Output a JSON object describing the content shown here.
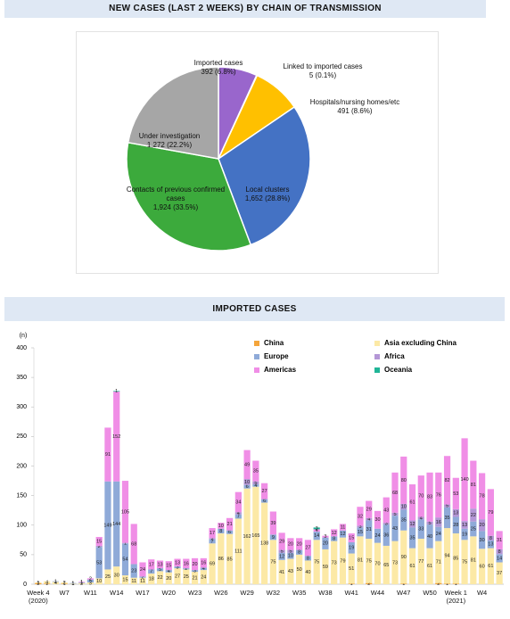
{
  "chart_data": [
    {
      "type": "pie",
      "title": "NEW CASES (LAST 2 WEEKS) BY CHAIN OF TRANSMISSION",
      "categories": [
        "Imported cases",
        "Linked to imported cases",
        "Hospitals/nursing homes/etc",
        "Local clusters",
        "Contacts of previous confirmed cases",
        "Under investigation"
      ],
      "values": [
        392,
        5,
        491,
        1652,
        1924,
        1272
      ],
      "value_labels": [
        "392 (6.8%)",
        "5 (0.1%)",
        "491 (8.6%)",
        "1,652 (28.8%)",
        "1,924 (33.5%)",
        "1,272 (22.2%)"
      ],
      "colors": [
        "#9966cc",
        "#7f7f7f",
        "#ffc000",
        "#4472c4",
        "#3caa3c",
        "#a6a6a6"
      ]
    },
    {
      "type": "bar",
      "stacked": true,
      "title": "IMPORTED CASES",
      "y_label": "(n)",
      "categories": [
        "Week 4\n(2020)",
        null,
        null,
        "W7",
        null,
        null,
        "W11",
        null,
        null,
        "W14",
        null,
        null,
        "W17",
        null,
        null,
        "W20",
        null,
        null,
        "W23",
        null,
        null,
        "W26",
        null,
        null,
        "W29",
        null,
        null,
        "W32",
        null,
        null,
        "W35",
        null,
        null,
        "W38",
        null,
        null,
        "W41",
        null,
        null,
        "W44",
        null,
        null,
        "W47",
        null,
        null,
        "W50",
        null,
        null,
        "Week 1\n(2021)",
        null,
        null,
        "W4",
        null,
        null
      ],
      "series": [
        {
          "name": "China",
          "color": "#f4a53b",
          "values": [
            2,
            1,
            0,
            1,
            0,
            0,
            0,
            0,
            0,
            0,
            0,
            0,
            0,
            0,
            0,
            0,
            0,
            0,
            0,
            0,
            0,
            0,
            0,
            0,
            0,
            0,
            0,
            0,
            0,
            0,
            0,
            0,
            0,
            0,
            0,
            0,
            1,
            0,
            2,
            0,
            0,
            0,
            1,
            0,
            0,
            0,
            2,
            1,
            1,
            0,
            0,
            0,
            0,
            0
          ]
        },
        {
          "name": "Asia excluding China",
          "color": "#fce9a6",
          "values": [
            1,
            4,
            4,
            2,
            1,
            2,
            3,
            10,
            25,
            30,
            15,
            11,
            11,
            18,
            22,
            20,
            27,
            25,
            21,
            24,
            69,
            86,
            85,
            111,
            162,
            165,
            138,
            75,
            41,
            43,
            50,
            40,
            75,
            59,
            73,
            79,
            51,
            81,
            75,
            70,
            65,
            73,
            90,
            61,
            77,
            61,
            71,
            94,
            85,
            75,
            81,
            60,
            61,
            37
          ]
        },
        {
          "name": "Europe",
          "color": "#8faad8",
          "values": [
            0,
            0,
            1,
            0,
            1,
            1,
            5,
            53,
            149,
            144,
            54,
            23,
            2,
            7,
            5,
            4,
            3,
            2,
            3,
            4,
            7,
            8,
            6,
            7,
            6,
            4,
            6,
            9,
            12,
            10,
            8,
            8,
            14,
            20,
            8,
            12,
            19,
            15,
            31,
            24,
            36,
            43,
            35,
            35,
            33,
            40,
            24,
            35,
            28,
            19,
            25,
            30,
            13,
            14
          ]
        },
        {
          "name": "Africa",
          "color": "#b497d6",
          "values": [
            0,
            0,
            0,
            0,
            0,
            0,
            0,
            2,
            0,
            0,
            1,
            0,
            0,
            0,
            0,
            0,
            0,
            0,
            0,
            0,
            2,
            0,
            0,
            4,
            10,
            5,
            0,
            0,
            5,
            5,
            0,
            0,
            0,
            0,
            0,
            0,
            0,
            3,
            4,
            0,
            3,
            5,
            10,
            12,
            4,
            5,
            16,
            5,
            13,
            13,
            22,
            20,
            8,
            8
          ]
        },
        {
          "name": "Americas",
          "color": "#f08ee6",
          "values": [
            0,
            0,
            0,
            0,
            0,
            1,
            2,
            15,
            91,
            152,
            105,
            68,
            24,
            17,
            13,
            15,
            13,
            16,
            20,
            16,
            17,
            10,
            21,
            34,
            49,
            35,
            27,
            39,
            29,
            20,
            20,
            27,
            4,
            3,
            12,
            11,
            15,
            32,
            29,
            30,
            43,
            68,
            80,
            61,
            70,
            83,
            76,
            82,
            53,
            140,
            81,
            78,
            79,
            31
          ]
        },
        {
          "name": "Oceania",
          "color": "#20b597",
          "values": [
            0,
            0,
            0,
            0,
            0,
            0,
            0,
            0,
            0,
            1,
            0,
            0,
            0,
            0,
            0,
            0,
            0,
            0,
            0,
            0,
            0,
            0,
            0,
            0,
            0,
            0,
            0,
            0,
            0,
            0,
            0,
            0,
            3,
            0,
            0,
            0,
            0,
            0,
            0,
            0,
            0,
            0,
            0,
            0,
            0,
            0,
            0,
            0,
            0,
            0,
            0,
            0,
            0,
            0
          ]
        }
      ],
      "ylim": [
        0,
        400
      ],
      "yticks": [
        0,
        50,
        100,
        150,
        200,
        250,
        300,
        350,
        400
      ],
      "legend": "top-right"
    }
  ]
}
